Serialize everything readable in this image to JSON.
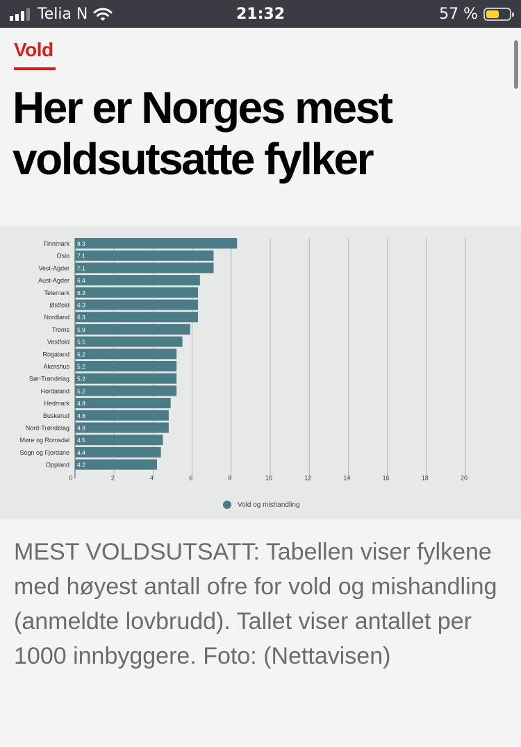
{
  "status_bar": {
    "carrier": "Telia N",
    "time": "21:32",
    "battery_percent": "57 %",
    "battery_level": 0.57,
    "signal_bars": 3
  },
  "article": {
    "category": "Vold",
    "headline_line1": "Her er Norges mest",
    "headline_line2": "voldsutsatte fylker",
    "caption": "MEST VOLDSUTSATT: Tabellen viser fylkene med høyest antall ofre for vold og mishandling (anmeldte lovbrudd). Tallet viser antallet per 1000 innbyggere. Foto: (Nettavisen)"
  },
  "colors": {
    "accent": "#d5201c",
    "bar": "#4c7c85",
    "status_bar_bg": "#3b3c43",
    "battery": "#ffd426"
  },
  "chart_data": {
    "type": "bar",
    "orientation": "horizontal",
    "categories": [
      "Finnmark",
      "Oslo",
      "Vest-Agder",
      "Aust-Agder",
      "Telemark",
      "Østfold",
      "Nordland",
      "Troms",
      "Vestfold",
      "Rogaland",
      "Akershus",
      "Sør-Trøndelag",
      "Hordaland",
      "Hedmark",
      "Buskerud",
      "Nord-Trøndelag",
      "Møre og Romsdal",
      "Sogn og Fjordane",
      "Oppland"
    ],
    "series": [
      {
        "name": "Vold og mishandling",
        "values": [
          8.3,
          7.1,
          7.1,
          6.4,
          6.3,
          6.3,
          6.3,
          5.9,
          5.5,
          5.2,
          5.2,
          5.2,
          5.2,
          4.9,
          4.8,
          4.8,
          4.5,
          4.4,
          4.2
        ],
        "labels": [
          "8.3",
          "7.1",
          "7.1",
          "6.4",
          "6.3",
          "6.3",
          "6.3",
          "5.9",
          "5.5",
          "5.2",
          "5.2",
          "5.2",
          "5.2",
          "4.9",
          "4.8",
          "4.8",
          "4.5",
          "4.4",
          "4.2"
        ],
        "color": "#4c7c85"
      }
    ],
    "xlim": [
      0,
      20
    ],
    "x_ticks": [
      "0",
      "2",
      "4",
      "6",
      "8",
      "10",
      "12",
      "14",
      "16",
      "18",
      "20"
    ],
    "grid": "vertical",
    "legend_position": "bottom-center",
    "title": "",
    "xlabel": "",
    "ylabel": ""
  }
}
